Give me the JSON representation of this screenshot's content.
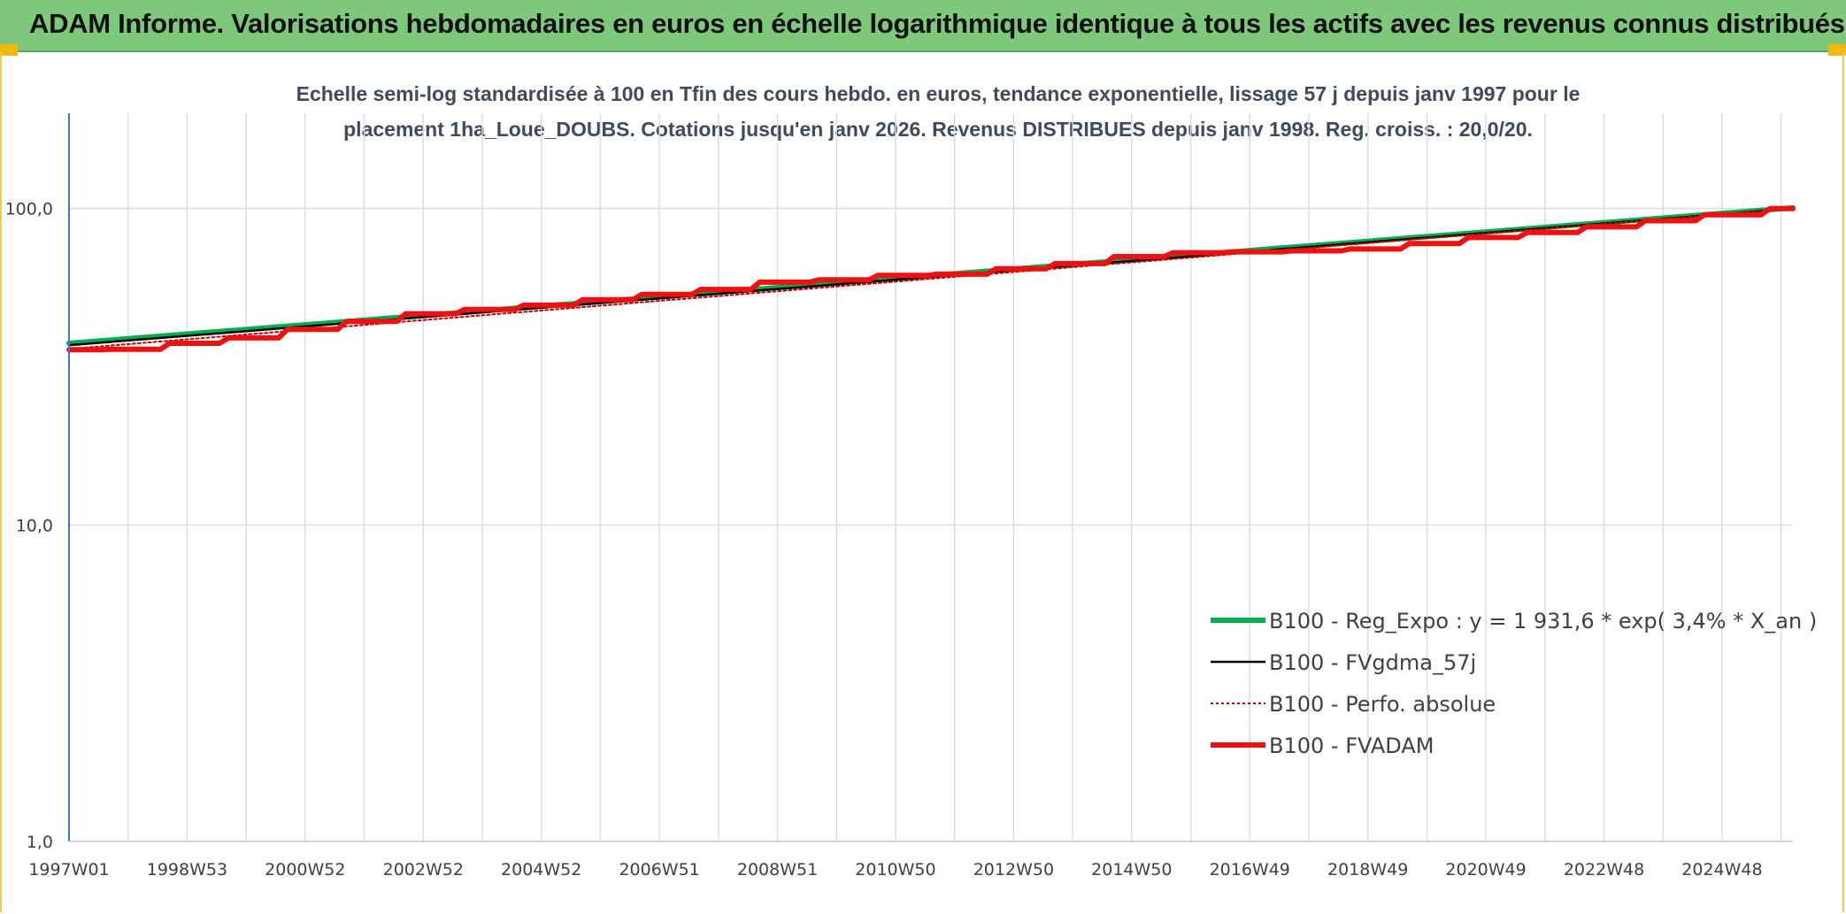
{
  "header": {
    "title": "ADAM Informe. Valorisations hebdomadaires en euros en échelle logarithmique identique à tous les actifs avec les revenus connus distribués"
  },
  "colors": {
    "header_bg": "#7ec87c",
    "reg_expo": "#00b050",
    "fvgdma": "#000000",
    "perfo": "#c00000",
    "fvadam": "#ee1111",
    "grid": "#d9dde3",
    "axis": "#4472c4"
  },
  "chart_data": {
    "type": "line",
    "title_line1": "Echelle semi-log standardisée à 100 en Tfin des cours hebdo. en euros, tendance exponentielle, lissage 57 j depuis janv 1997 pour le",
    "title_line2": "placement 1ha_Loue_DOUBS. Cotations jusqu'en janv 2026. Revenus DISTRIBUES depuis janv 1998. Reg. croiss. : 20,0/20.",
    "yscale": "log",
    "ylim": [
      1,
      200
    ],
    "yticks": [
      {
        "value": 1,
        "label": "1,0"
      },
      {
        "value": 10,
        "label": "10,0"
      },
      {
        "value": 100,
        "label": "100,0"
      }
    ],
    "xlim": [
      1997.0,
      2026.2
    ],
    "xticks": [
      {
        "value": 1997.0,
        "label": "1997W01"
      },
      {
        "value": 1999.0,
        "label": "1998W53"
      },
      {
        "value": 2001.0,
        "label": "2000W52"
      },
      {
        "value": 2003.0,
        "label": "2002W52"
      },
      {
        "value": 2005.0,
        "label": "2004W52"
      },
      {
        "value": 2007.0,
        "label": "2006W51"
      },
      {
        "value": 2009.0,
        "label": "2008W51"
      },
      {
        "value": 2011.0,
        "label": "2010W50"
      },
      {
        "value": 2013.0,
        "label": "2012W50"
      },
      {
        "value": 2015.0,
        "label": "2014W50"
      },
      {
        "value": 2017.0,
        "label": "2016W49"
      },
      {
        "value": 2019.0,
        "label": "2018W49"
      },
      {
        "value": 2021.0,
        "label": "2020W49"
      },
      {
        "value": 2023.0,
        "label": "2022W48"
      },
      {
        "value": 2025.0,
        "label": "2024W48"
      }
    ],
    "legend_position": "bottom-right",
    "series": [
      {
        "name": "B100 - Reg_Expo : y = 1 931,6 * exp( 3,4% *  X_an )",
        "style": "solid-thick",
        "color": "#00b050",
        "x": [
          1997.0,
          2026.2
        ],
        "y": [
          37.5,
          100.5
        ]
      },
      {
        "name": "B100 - FVgdma_57j",
        "style": "solid-thin",
        "color": "#000000",
        "x": [
          1997.0,
          2026.2
        ],
        "y": [
          37.0,
          100.0
        ],
        "hidden_under_fvadam": true
      },
      {
        "name": "B100 - Perfo. absolue",
        "style": "dotted",
        "color": "#c00000",
        "x": [
          1997.0,
          2026.2
        ],
        "y": [
          36.0,
          100.0
        ],
        "hidden_under_fvadam": true
      },
      {
        "name": "B100 - FVADAM",
        "style": "solid-thick",
        "color": "#ee1111",
        "x": [
          1997.0,
          1998.0,
          1999.0,
          2000.0,
          2001.0,
          2002.0,
          2003.0,
          2004.0,
          2005.0,
          2006.0,
          2007.0,
          2008.0,
          2009.0,
          2010.0,
          2011.0,
          2012.0,
          2013.0,
          2014.0,
          2015.0,
          2016.0,
          2017.0,
          2018.0,
          2019.0,
          2020.0,
          2021.0,
          2022.0,
          2023.0,
          2024.0,
          2025.0,
          2026.2
        ],
        "y": [
          35.8,
          35.9,
          37.5,
          39.0,
          41.5,
          44.0,
          46.5,
          48.0,
          49.5,
          51.5,
          53.5,
          55.5,
          58.5,
          59.5,
          61.5,
          62.0,
          64.5,
          67.0,
          70.5,
          72.5,
          73.0,
          73.5,
          74.5,
          77.5,
          81.0,
          84.0,
          87.5,
          91.5,
          95.5,
          100.0
        ]
      }
    ]
  }
}
